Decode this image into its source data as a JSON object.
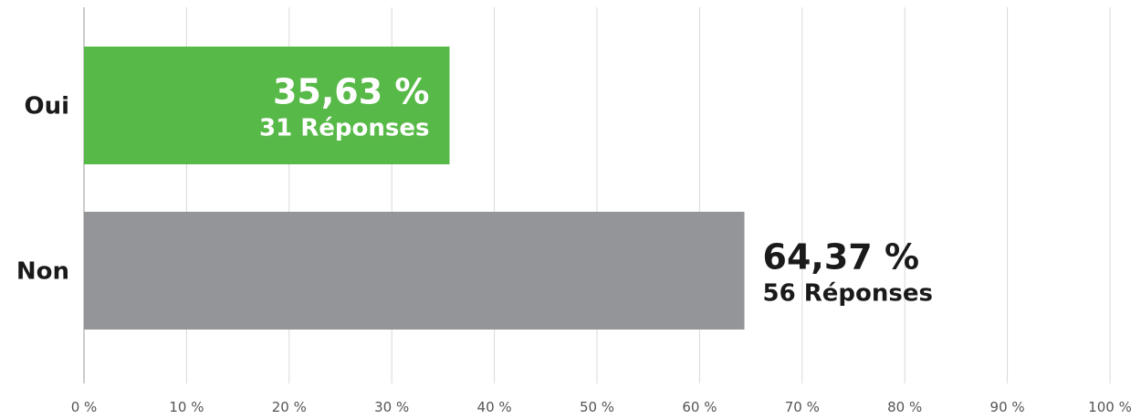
{
  "chart_data": {
    "type": "bar",
    "orientation": "horizontal",
    "categories": [
      "Oui",
      "Non"
    ],
    "values": [
      35.63,
      64.37
    ],
    "value_labels": [
      "35,63 %",
      "64,37 %"
    ],
    "count_labels": [
      "31 Réponses",
      "56 Réponses"
    ],
    "bar_colors": [
      "#57b947",
      "#939598"
    ],
    "label_colors": [
      "#ffffff",
      "#1a1a1a"
    ],
    "xlim": [
      0,
      100
    ],
    "x_ticks": [
      "0 %",
      "10 %",
      "20 %",
      "30 %",
      "40 %",
      "50 %",
      "60 %",
      "70 %",
      "80 %",
      "90 %",
      "100 %"
    ],
    "grid": true
  }
}
